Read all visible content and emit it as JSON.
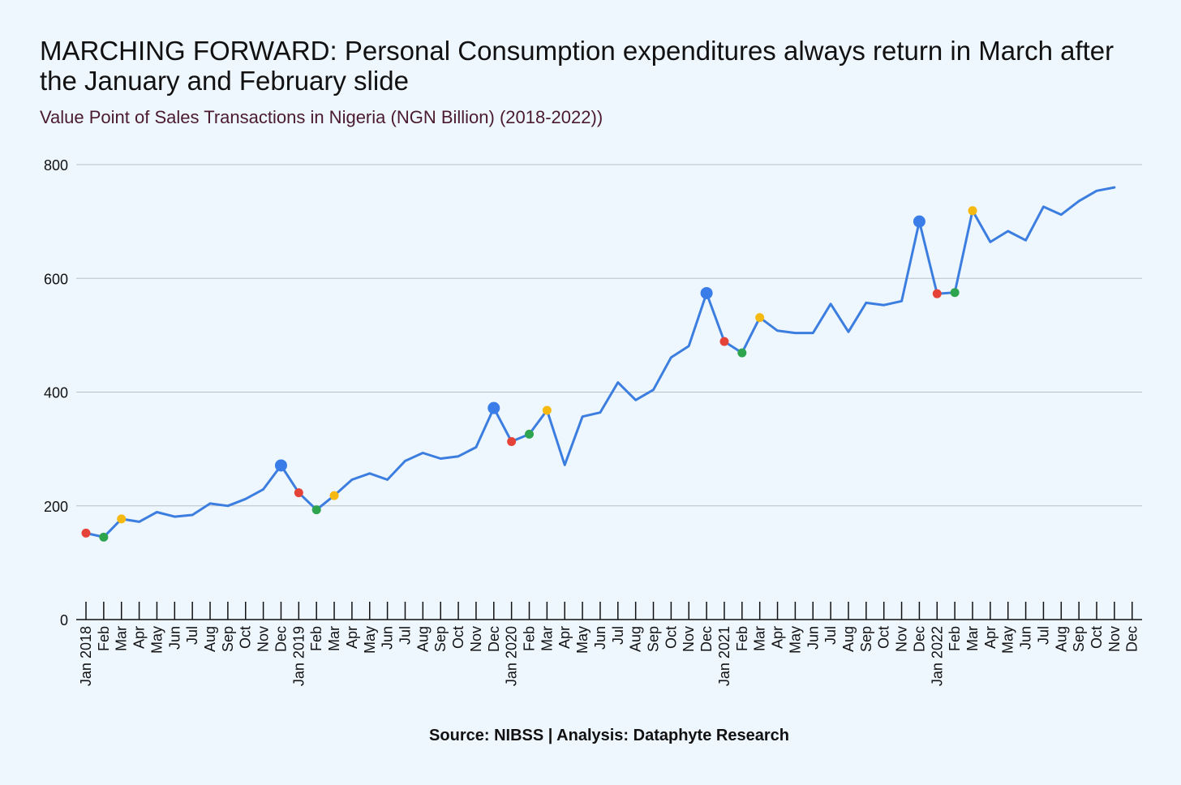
{
  "title": "MARCHING FORWARD: Personal Consumption expenditures always return in March after the January and February slide",
  "subtitle": "Value Point of Sales Transactions in Nigeria (NGN Billion) (2018-2022))",
  "source": "Source: NIBSS | Analysis: Dataphyte Research",
  "colors": {
    "background": "#eef6fe",
    "line": "#3c7ee0",
    "december": "#3b7de8",
    "january": "#e64338",
    "february": "#2ea44f",
    "march": "#f6b912",
    "gridline": "#b9c2c8",
    "axis": "#111111"
  },
  "chart_data": {
    "type": "line",
    "title": "Value Point of Sales Transactions in Nigeria (NGN Billion) (2018-2022))",
    "xlabel": "",
    "ylabel": "",
    "ylim": [
      0,
      800
    ],
    "yticks": [
      0,
      200,
      400,
      600,
      800
    ],
    "grid": true,
    "categories": [
      "Jan 2018",
      "Feb",
      "Mar",
      "Apr",
      "May",
      "Jun",
      "Jul",
      "Aug",
      "Sep",
      "Oct",
      "Nov",
      "Dec",
      "Jan 2019",
      "Feb",
      "Mar",
      "Apr",
      "May",
      "Jun",
      "Jul",
      "Aug",
      "Sep",
      "Oct",
      "Nov",
      "Dec",
      "Jan 2020",
      "Feb",
      "Mar",
      "Apr",
      "May",
      "Jun",
      "Jul",
      "Aug",
      "Sep",
      "Oct",
      "Nov",
      "Dec",
      "Jan 2021",
      "Feb",
      "Mar",
      "Apr",
      "May",
      "Jun",
      "Jul",
      "Aug",
      "Sep",
      "Oct",
      "Nov",
      "Dec",
      "Jan 2022",
      "Feb",
      "Mar",
      "Apr",
      "May",
      "Jun",
      "Jul",
      "Aug",
      "Sep",
      "Oct",
      "Nov",
      "Dec"
    ],
    "series": [
      {
        "name": "Value Point of Sales Transactions (NGN Billion)",
        "values": [
          152,
          145,
          177,
          172,
          189,
          181,
          184,
          204,
          200,
          212,
          229,
          271,
          223,
          193,
          218,
          246,
          257,
          246,
          279,
          293,
          283,
          287,
          303,
          372,
          313,
          326,
          368,
          272,
          357,
          364,
          417,
          386,
          404,
          461,
          481,
          574,
          489,
          469,
          531,
          508,
          504,
          504,
          555,
          506,
          557,
          553,
          560,
          700,
          573,
          575,
          719,
          664,
          683,
          667,
          726,
          712,
          736,
          754,
          760,
          null
        ]
      }
    ],
    "highlights": {
      "december": [
        11,
        23,
        35,
        47
      ],
      "january": [
        0,
        12,
        24,
        36,
        48
      ],
      "february": [
        1,
        13,
        25,
        37,
        49
      ],
      "march": [
        2,
        14,
        26,
        38,
        50
      ]
    }
  }
}
